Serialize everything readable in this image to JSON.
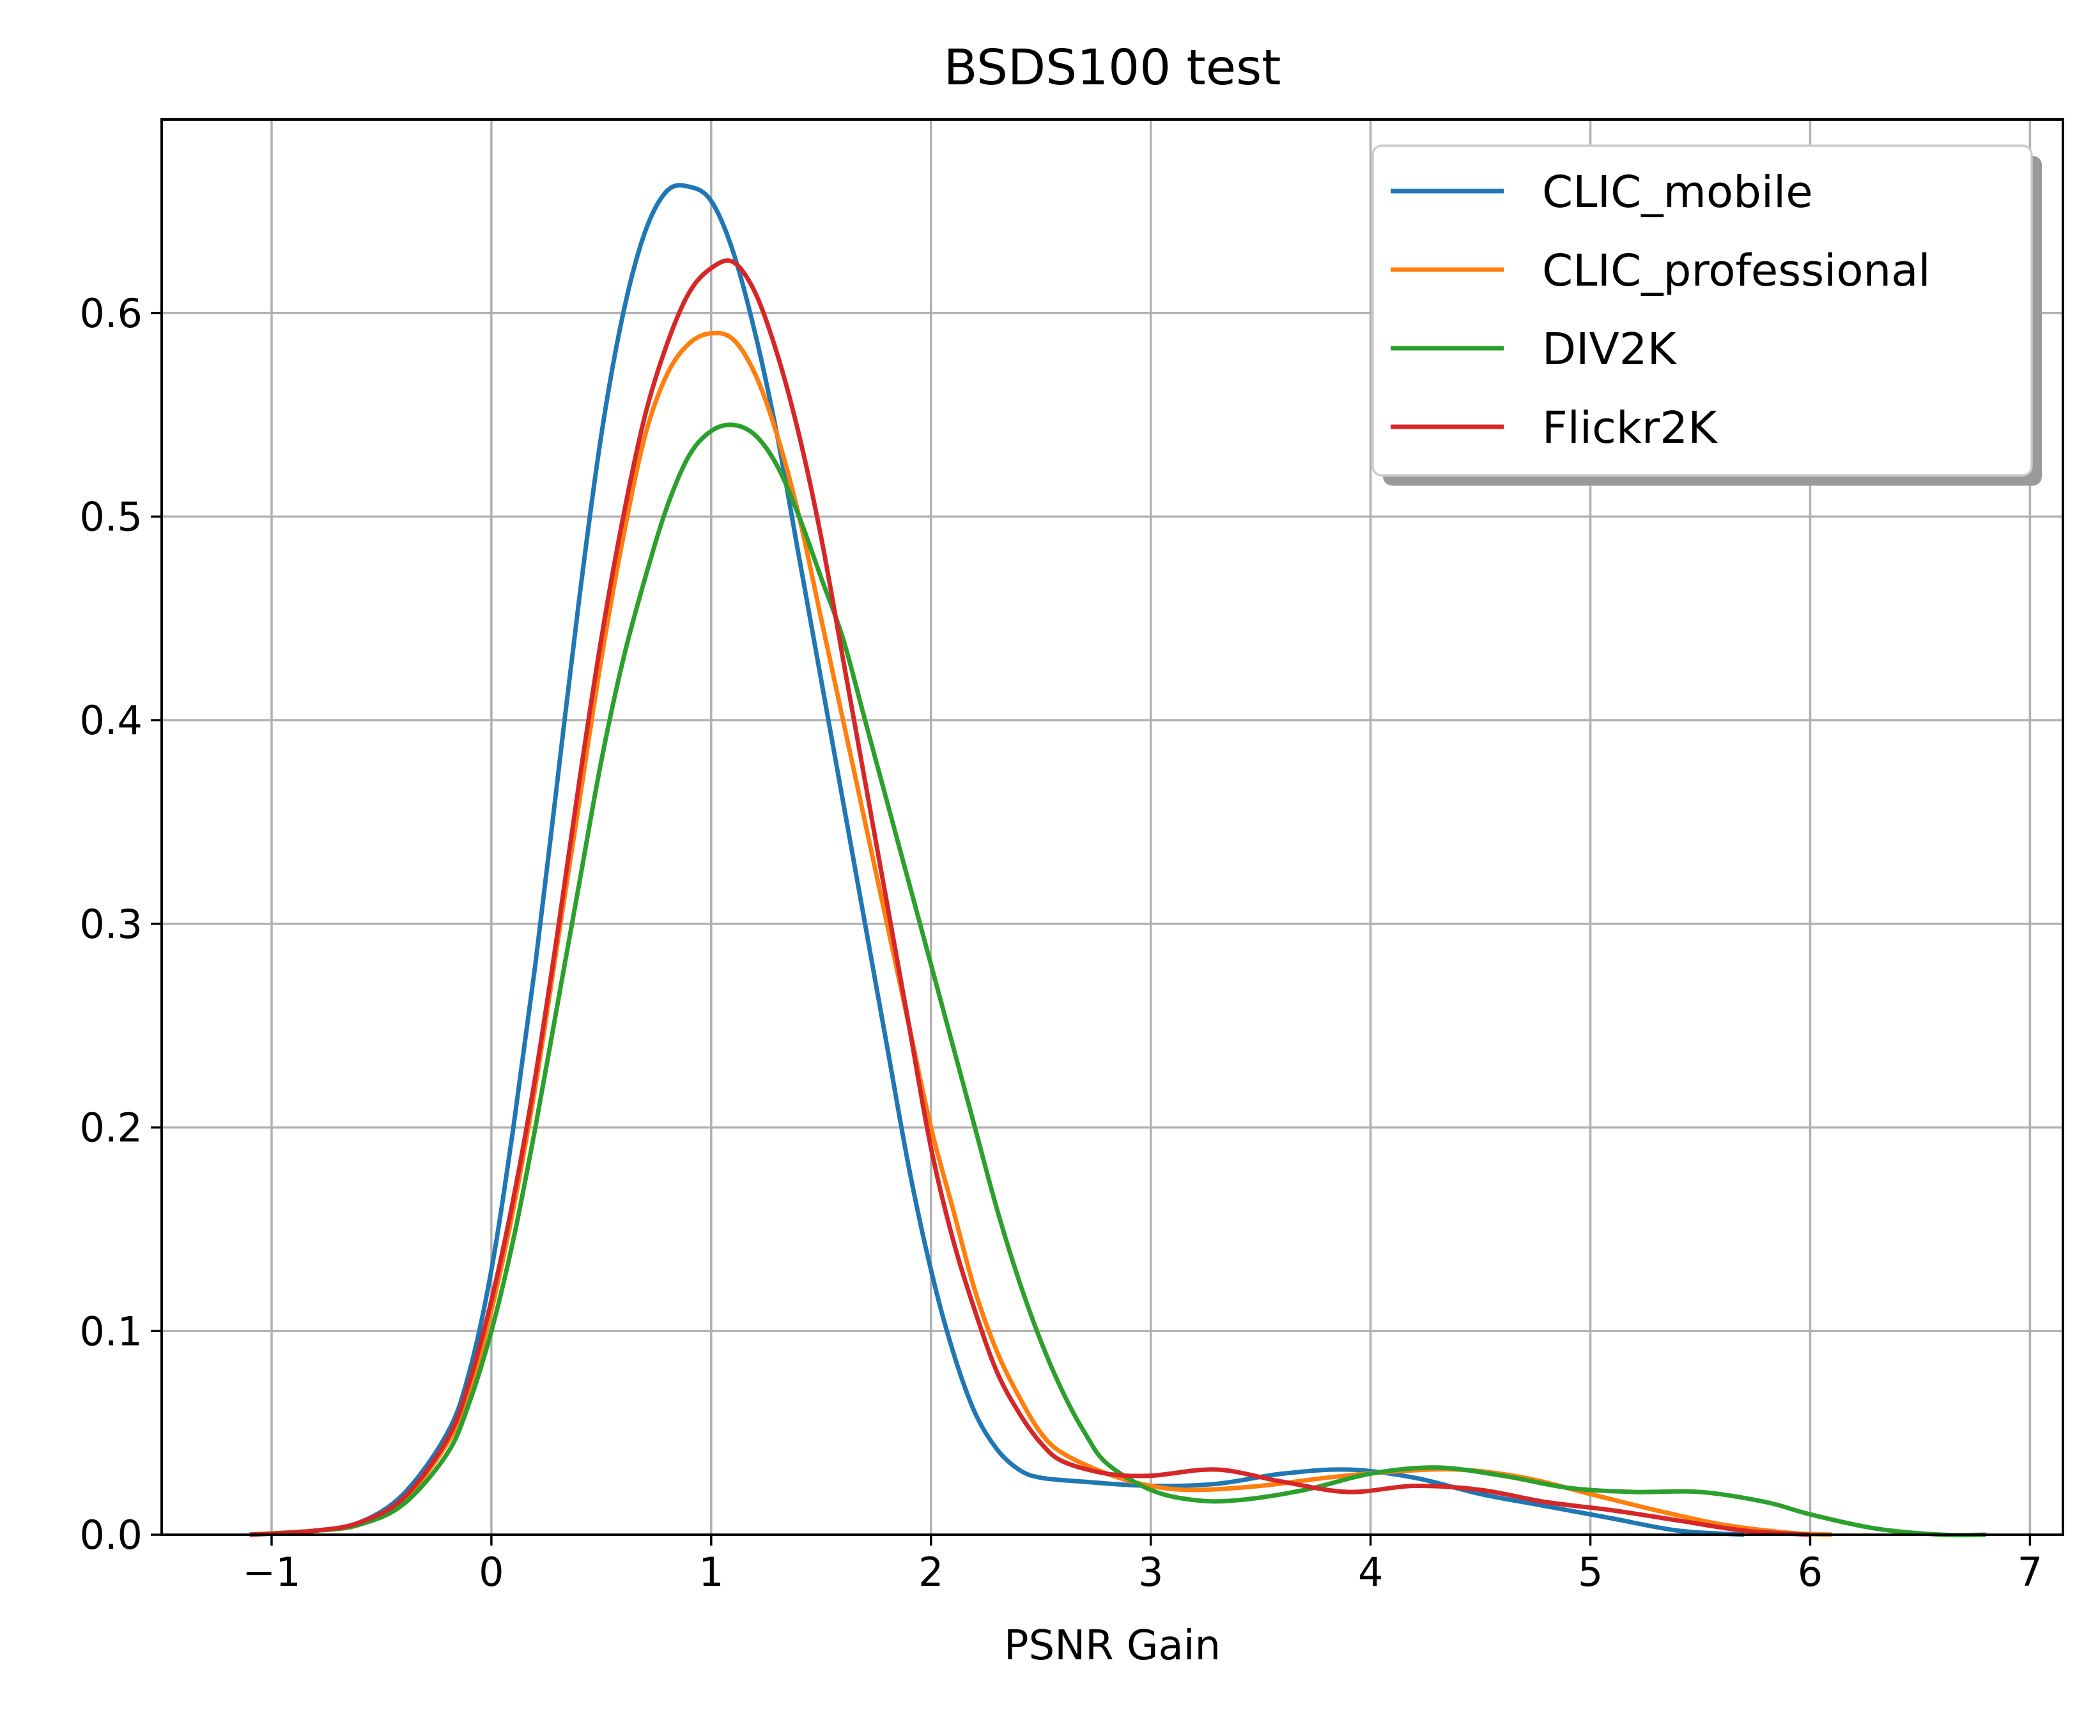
{
  "chart_data": {
    "type": "line",
    "title": "BSDS100 test",
    "xlabel": "PSNR Gain",
    "ylabel": "",
    "xlim": [
      -1.5,
      7.15
    ],
    "ylim": [
      0.0,
      0.695
    ],
    "xticks": [
      -1,
      0,
      1,
      2,
      3,
      4,
      5,
      6,
      7
    ],
    "xtick_labels": [
      "−1",
      "0",
      "1",
      "2",
      "3",
      "4",
      "5",
      "6",
      "7"
    ],
    "yticks": [
      0.0,
      0.1,
      0.2,
      0.3,
      0.4,
      0.5,
      0.6
    ],
    "ytick_labels": [
      "0.0",
      "0.1",
      "0.2",
      "0.3",
      "0.4",
      "0.5",
      "0.6"
    ],
    "grid": true,
    "legend_position": "upper-right",
    "series": [
      {
        "name": "CLIC_mobile",
        "color": "#1f77b4",
        "points": [
          [
            -1.1,
            0.0
          ],
          [
            -0.8,
            0.002
          ],
          [
            -0.6,
            0.006
          ],
          [
            -0.4,
            0.02
          ],
          [
            -0.2,
            0.05
          ],
          [
            -0.1,
            0.08
          ],
          [
            0.0,
            0.13
          ],
          [
            0.1,
            0.2
          ],
          [
            0.2,
            0.28
          ],
          [
            0.3,
            0.37
          ],
          [
            0.4,
            0.46
          ],
          [
            0.5,
            0.54
          ],
          [
            0.6,
            0.6
          ],
          [
            0.7,
            0.64
          ],
          [
            0.8,
            0.66
          ],
          [
            0.9,
            0.662
          ],
          [
            1.0,
            0.655
          ],
          [
            1.1,
            0.63
          ],
          [
            1.2,
            0.59
          ],
          [
            1.3,
            0.54
          ],
          [
            1.4,
            0.48
          ],
          [
            1.5,
            0.42
          ],
          [
            1.6,
            0.36
          ],
          [
            1.7,
            0.3
          ],
          [
            1.8,
            0.24
          ],
          [
            1.9,
            0.18
          ],
          [
            2.0,
            0.13
          ],
          [
            2.1,
            0.09
          ],
          [
            2.2,
            0.06
          ],
          [
            2.3,
            0.042
          ],
          [
            2.4,
            0.032
          ],
          [
            2.5,
            0.028
          ],
          [
            2.7,
            0.026
          ],
          [
            3.0,
            0.024
          ],
          [
            3.3,
            0.025
          ],
          [
            3.6,
            0.03
          ],
          [
            3.9,
            0.032
          ],
          [
            4.2,
            0.028
          ],
          [
            4.5,
            0.02
          ],
          [
            4.8,
            0.014
          ],
          [
            5.1,
            0.008
          ],
          [
            5.4,
            0.002
          ],
          [
            5.7,
            0.0
          ]
        ]
      },
      {
        "name": "CLIC_professional",
        "color": "#ff7f0e",
        "points": [
          [
            -1.1,
            0.0
          ],
          [
            -0.8,
            0.002
          ],
          [
            -0.6,
            0.005
          ],
          [
            -0.4,
            0.017
          ],
          [
            -0.2,
            0.045
          ],
          [
            -0.1,
            0.07
          ],
          [
            0.0,
            0.11
          ],
          [
            0.1,
            0.16
          ],
          [
            0.2,
            0.22
          ],
          [
            0.3,
            0.29
          ],
          [
            0.4,
            0.36
          ],
          [
            0.5,
            0.43
          ],
          [
            0.6,
            0.49
          ],
          [
            0.7,
            0.54
          ],
          [
            0.8,
            0.57
          ],
          [
            0.9,
            0.585
          ],
          [
            1.0,
            0.59
          ],
          [
            1.1,
            0.587
          ],
          [
            1.2,
            0.57
          ],
          [
            1.3,
            0.54
          ],
          [
            1.4,
            0.5
          ],
          [
            1.5,
            0.45
          ],
          [
            1.6,
            0.4
          ],
          [
            1.7,
            0.35
          ],
          [
            1.8,
            0.3
          ],
          [
            1.9,
            0.25
          ],
          [
            2.0,
            0.2
          ],
          [
            2.1,
            0.16
          ],
          [
            2.2,
            0.12
          ],
          [
            2.3,
            0.09
          ],
          [
            2.4,
            0.068
          ],
          [
            2.5,
            0.05
          ],
          [
            2.6,
            0.04
          ],
          [
            2.8,
            0.03
          ],
          [
            3.0,
            0.024
          ],
          [
            3.2,
            0.022
          ],
          [
            3.5,
            0.024
          ],
          [
            3.8,
            0.028
          ],
          [
            4.1,
            0.031
          ],
          [
            4.4,
            0.032
          ],
          [
            4.7,
            0.028
          ],
          [
            5.0,
            0.02
          ],
          [
            5.3,
            0.012
          ],
          [
            5.6,
            0.005
          ],
          [
            5.9,
            0.001
          ],
          [
            6.1,
            0.0
          ]
        ]
      },
      {
        "name": "DIV2K",
        "color": "#2ca02c",
        "points": [
          [
            -1.1,
            0.0
          ],
          [
            -0.8,
            0.002
          ],
          [
            -0.6,
            0.005
          ],
          [
            -0.4,
            0.015
          ],
          [
            -0.2,
            0.04
          ],
          [
            -0.1,
            0.065
          ],
          [
            0.0,
            0.1
          ],
          [
            0.1,
            0.145
          ],
          [
            0.2,
            0.2
          ],
          [
            0.3,
            0.26
          ],
          [
            0.4,
            0.32
          ],
          [
            0.5,
            0.38
          ],
          [
            0.6,
            0.43
          ],
          [
            0.7,
            0.47
          ],
          [
            0.8,
            0.505
          ],
          [
            0.9,
            0.53
          ],
          [
            1.0,
            0.542
          ],
          [
            1.1,
            0.545
          ],
          [
            1.2,
            0.54
          ],
          [
            1.3,
            0.525
          ],
          [
            1.4,
            0.5
          ],
          [
            1.5,
            0.47
          ],
          [
            1.6,
            0.44
          ],
          [
            1.7,
            0.4
          ],
          [
            1.8,
            0.36
          ],
          [
            1.9,
            0.32
          ],
          [
            2.0,
            0.28
          ],
          [
            2.1,
            0.24
          ],
          [
            2.2,
            0.2
          ],
          [
            2.3,
            0.16
          ],
          [
            2.4,
            0.125
          ],
          [
            2.5,
            0.095
          ],
          [
            2.6,
            0.07
          ],
          [
            2.7,
            0.05
          ],
          [
            2.8,
            0.035
          ],
          [
            3.0,
            0.022
          ],
          [
            3.2,
            0.017
          ],
          [
            3.4,
            0.017
          ],
          [
            3.7,
            0.022
          ],
          [
            4.0,
            0.03
          ],
          [
            4.3,
            0.033
          ],
          [
            4.6,
            0.029
          ],
          [
            4.9,
            0.023
          ],
          [
            5.2,
            0.021
          ],
          [
            5.5,
            0.021
          ],
          [
            5.8,
            0.016
          ],
          [
            6.0,
            0.01
          ],
          [
            6.3,
            0.003
          ],
          [
            6.6,
            0.0
          ],
          [
            6.8,
            0.0
          ]
        ]
      },
      {
        "name": "Flickr2K",
        "color": "#d62728",
        "points": [
          [
            -1.1,
            0.0
          ],
          [
            -0.8,
            0.002
          ],
          [
            -0.6,
            0.006
          ],
          [
            -0.4,
            0.018
          ],
          [
            -0.2,
            0.047
          ],
          [
            -0.1,
            0.075
          ],
          [
            0.0,
            0.115
          ],
          [
            0.1,
            0.165
          ],
          [
            0.2,
            0.225
          ],
          [
            0.3,
            0.295
          ],
          [
            0.4,
            0.37
          ],
          [
            0.5,
            0.44
          ],
          [
            0.6,
            0.5
          ],
          [
            0.7,
            0.55
          ],
          [
            0.8,
            0.585
          ],
          [
            0.9,
            0.61
          ],
          [
            1.0,
            0.622
          ],
          [
            1.1,
            0.625
          ],
          [
            1.2,
            0.61
          ],
          [
            1.3,
            0.58
          ],
          [
            1.4,
            0.54
          ],
          [
            1.5,
            0.49
          ],
          [
            1.6,
            0.43
          ],
          [
            1.7,
            0.37
          ],
          [
            1.8,
            0.31
          ],
          [
            1.9,
            0.25
          ],
          [
            2.0,
            0.19
          ],
          [
            2.1,
            0.145
          ],
          [
            2.2,
            0.11
          ],
          [
            2.3,
            0.08
          ],
          [
            2.4,
            0.06
          ],
          [
            2.5,
            0.045
          ],
          [
            2.6,
            0.036
          ],
          [
            2.8,
            0.03
          ],
          [
            3.0,
            0.029
          ],
          [
            3.3,
            0.032
          ],
          [
            3.6,
            0.026
          ],
          [
            3.9,
            0.021
          ],
          [
            4.2,
            0.024
          ],
          [
            4.5,
            0.022
          ],
          [
            4.8,
            0.016
          ],
          [
            5.1,
            0.012
          ],
          [
            5.4,
            0.007
          ],
          [
            5.7,
            0.002
          ],
          [
            6.0,
            0.0
          ]
        ]
      }
    ]
  }
}
